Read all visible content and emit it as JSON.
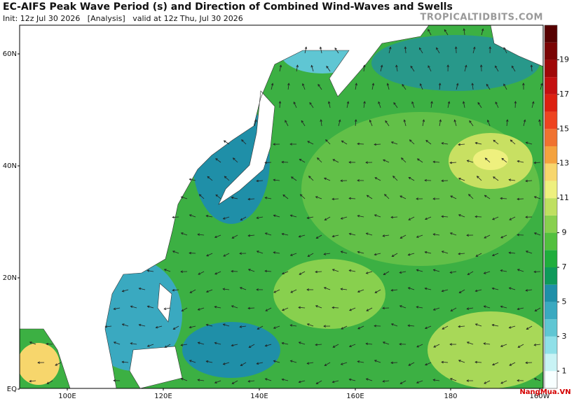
{
  "header": {
    "title": "EC-AIFS Peak Wave Period (s) and Direction of Combined Wind-Waves and Swells",
    "subtitle": "Init: 12z Jul 30 2026   [Analysis]   valid at 12z Thu, Jul 30 2026",
    "source": "TROPICALTIDBITS.COM"
  },
  "map": {
    "lat_labels": [
      "60N",
      "40N",
      "20N",
      "EQ"
    ],
    "lon_labels": [
      "100E",
      "120E",
      "140E",
      "160E",
      "180",
      "160W"
    ]
  },
  "colorbar": {
    "range": [
      0,
      21
    ],
    "ticks": [
      1,
      3,
      5,
      7,
      9,
      11,
      13,
      15,
      17,
      19
    ],
    "colors": [
      "#f7ffff",
      "#c8f3f5",
      "#8fe0e8",
      "#5fc6d3",
      "#3aa9c0",
      "#1f8fa8",
      "#0e9a5a",
      "#1fae3c",
      "#52c03e",
      "#88d04e",
      "#bfe060",
      "#eef07e",
      "#f7d66c",
      "#f4a23e",
      "#f07230",
      "#ee4420",
      "#dc2010",
      "#c41010",
      "#a00808",
      "#7a0404",
      "#560000"
    ]
  },
  "watermark": "NangMua.VN"
}
